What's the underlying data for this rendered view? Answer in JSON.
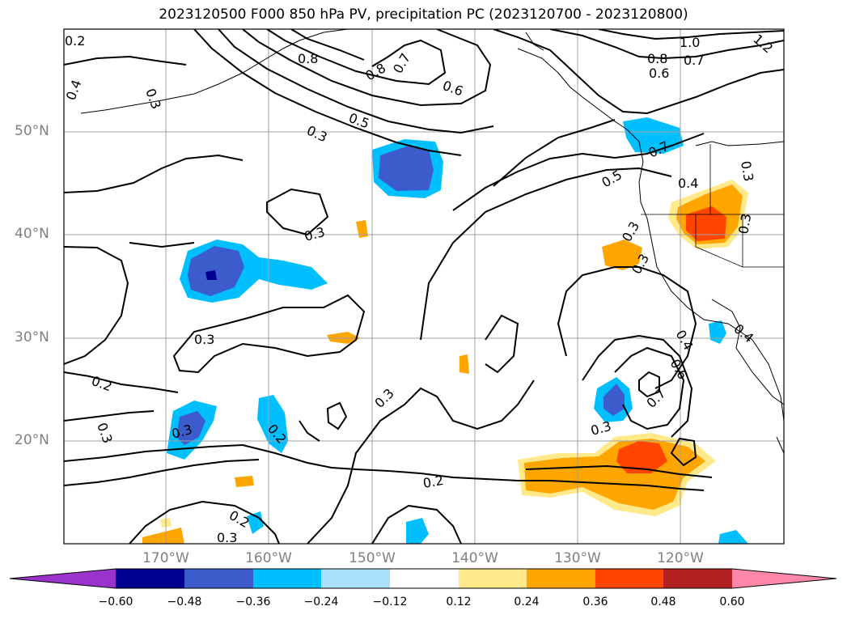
{
  "title": "2023120500 F000 850 hPa PV, precipitation PC (2023120700 - 2023120800)",
  "lat_labels": [
    "50°N",
    "40°N",
    "30°N",
    "20°N"
  ],
  "lon_labels": [
    "170°W",
    "160°W",
    "150°W",
    "140°W",
    "130°W",
    "120°W"
  ],
  "colorbar": {
    "colors": [
      "#9933cc",
      "#000090",
      "#3c5ccc",
      "#00bfff",
      "#abe0fb",
      "#ffffff",
      "#ffe98a",
      "#ffa500",
      "#ff4500",
      "#b22222",
      "#ff88aa"
    ],
    "ticks": [
      "−0.60",
      "−0.48",
      "−0.36",
      "−0.24",
      "−0.12",
      "0.12",
      "0.24",
      "0.36",
      "0.48",
      "0.60"
    ]
  },
  "contour_labels": [
    "0.2",
    "0.4",
    "0.3",
    "0.8",
    "0.8",
    "0.7",
    "0.6",
    "0.5",
    "0.3",
    "1.0",
    "0.8",
    "0.7",
    "0.6",
    "1.2",
    "0.7",
    "0.5",
    "0.4",
    "0.3",
    "0.3",
    "0.3",
    "0.3",
    "0.3",
    "0.2",
    "0.3",
    "0.3",
    "0.3",
    "0.2",
    "0.3",
    "0.4",
    "0.6",
    "0.7",
    "0.4",
    "0.3",
    "0.2",
    "0.2",
    "0.3"
  ]
}
